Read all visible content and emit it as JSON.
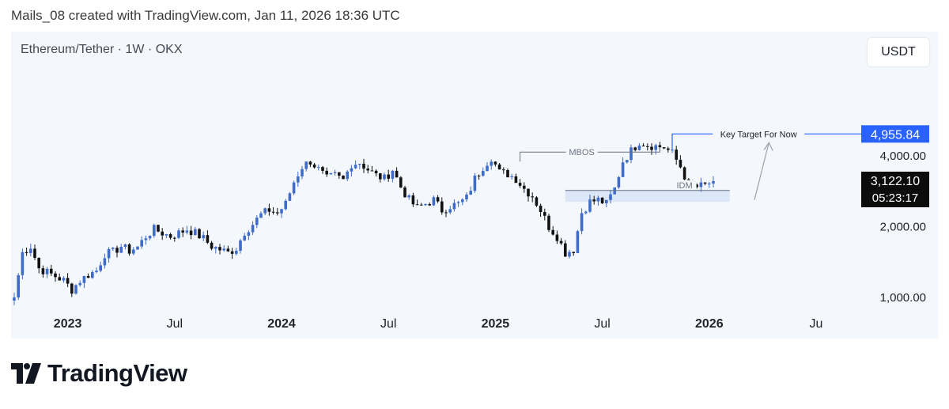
{
  "caption": "Mails_08 created with TradingView.com, Jan 11, 2026 18:36 UTC",
  "symbol_legend": "Ethereum/Tether · 1W · OKX",
  "currency": "USDT",
  "brand": "TradingView",
  "colors": {
    "up": "#3f6cc9",
    "down": "#111111",
    "target": "#2962ff",
    "zone": "#dbe6f7"
  },
  "chart_data": {
    "type": "candlestick",
    "interval": "1W",
    "y_scale": "log",
    "ylim": [
      900,
      6000
    ],
    "y_ticks": [
      {
        "value": 4000,
        "label": "4,000.00"
      },
      {
        "value": 2000,
        "label": "2,000.00"
      },
      {
        "value": 1000,
        "label": "1,000.00"
      }
    ],
    "x_ticks": [
      {
        "week": 13,
        "label": "2023",
        "bold": true
      },
      {
        "week": 39,
        "label": "Jul",
        "bold": false
      },
      {
        "week": 65,
        "label": "2024",
        "bold": true
      },
      {
        "week": 91,
        "label": "Jul",
        "bold": false
      },
      {
        "week": 117,
        "label": "2025",
        "bold": true
      },
      {
        "week": 143,
        "label": "Jul",
        "bold": false
      },
      {
        "week": 169,
        "label": "2026",
        "bold": true
      },
      {
        "week": 195,
        "label": "Ju",
        "bold": false
      }
    ],
    "anchors": [
      [
        0,
        1000
      ],
      [
        2,
        1550
      ],
      [
        4,
        1650
      ],
      [
        6,
        1330
      ],
      [
        8,
        1280
      ],
      [
        10,
        1230
      ],
      [
        12,
        1180
      ],
      [
        14,
        1080
      ],
      [
        16,
        1180
      ],
      [
        18,
        1250
      ],
      [
        20,
        1300
      ],
      [
        22,
        1530
      ],
      [
        24,
        1560
      ],
      [
        26,
        1650
      ],
      [
        28,
        1580
      ],
      [
        30,
        1640
      ],
      [
        32,
        1820
      ],
      [
        34,
        1950
      ],
      [
        36,
        1880
      ],
      [
        38,
        1820
      ],
      [
        40,
        1880
      ],
      [
        42,
        1950
      ],
      [
        44,
        1880
      ],
      [
        46,
        1780
      ],
      [
        48,
        1650
      ],
      [
        50,
        1600
      ],
      [
        52,
        1550
      ],
      [
        54,
        1620
      ],
      [
        56,
        1900
      ],
      [
        58,
        2050
      ],
      [
        60,
        2250
      ],
      [
        62,
        2350
      ],
      [
        64,
        2280
      ],
      [
        66,
        2500
      ],
      [
        68,
        3100
      ],
      [
        70,
        3600
      ],
      [
        72,
        3800
      ],
      [
        74,
        3500
      ],
      [
        76,
        3200
      ],
      [
        78,
        3300
      ],
      [
        80,
        3150
      ],
      [
        82,
        3700
      ],
      [
        84,
        3750
      ],
      [
        86,
        3500
      ],
      [
        88,
        3300
      ],
      [
        90,
        3200
      ],
      [
        92,
        3500
      ],
      [
        94,
        2950
      ],
      [
        96,
        2600
      ],
      [
        98,
        2400
      ],
      [
        100,
        2500
      ],
      [
        102,
        2600
      ],
      [
        104,
        2350
      ],
      [
        106,
        2450
      ],
      [
        108,
        2500
      ],
      [
        110,
        2650
      ],
      [
        112,
        3200
      ],
      [
        114,
        3600
      ],
      [
        116,
        3950
      ],
      [
        118,
        3400
      ],
      [
        120,
        3350
      ],
      [
        122,
        3200
      ],
      [
        124,
        2900
      ],
      [
        126,
        2700
      ],
      [
        128,
        2350
      ],
      [
        130,
        2000
      ],
      [
        132,
        1820
      ],
      [
        134,
        1550
      ],
      [
        136,
        1600
      ],
      [
        138,
        2300
      ],
      [
        140,
        2550
      ],
      [
        142,
        2600
      ],
      [
        144,
        2500
      ],
      [
        146,
        2900
      ],
      [
        148,
        3800
      ],
      [
        150,
        4200
      ],
      [
        152,
        4600
      ],
      [
        154,
        4450
      ],
      [
        156,
        4400
      ],
      [
        158,
        4350
      ],
      [
        160,
        4100
      ],
      [
        162,
        3600
      ],
      [
        164,
        3000
      ],
      [
        166,
        2950
      ],
      [
        168,
        3000
      ],
      [
        170,
        3122
      ]
    ],
    "last_price": "3,122.10",
    "countdown": "05:23:17",
    "annotations": {
      "target": {
        "label": "Key Target For Now",
        "value": 4955.84,
        "value_label": "4,955.84"
      },
      "mbos": {
        "label": "MBOS",
        "value": 4150
      },
      "idm": {
        "label": "IDM",
        "value": 2850
      }
    }
  }
}
